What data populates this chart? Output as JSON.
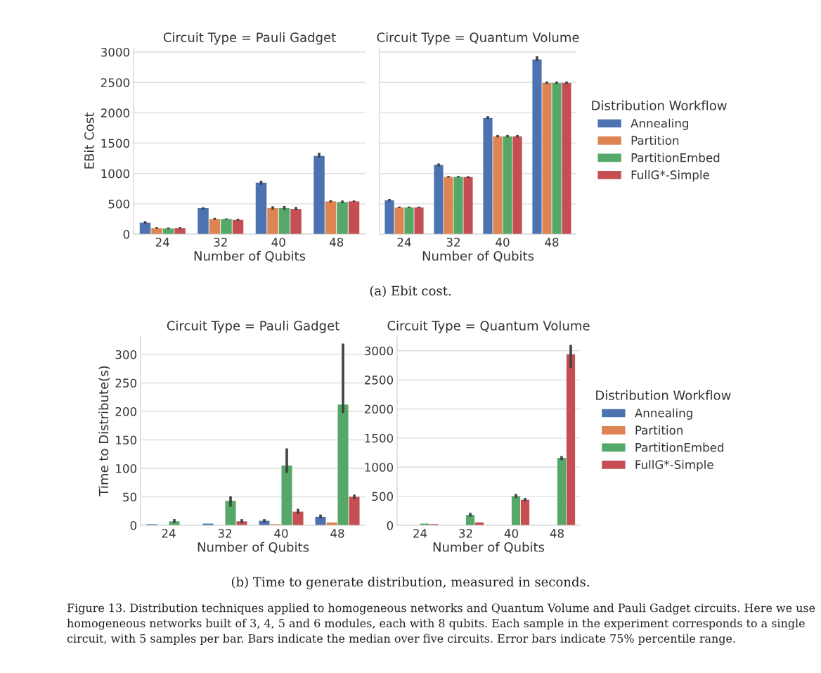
{
  "chart_data": [
    {
      "type": "bar",
      "title": "Circuit Type = Pauli Gadget",
      "xlabel": "Number of Qubits",
      "ylabel": "EBit Cost",
      "categories": [
        "24",
        "32",
        "40",
        "48"
      ],
      "ylim": [
        0,
        3070
      ],
      "yticks": [
        0,
        500,
        1000,
        1500,
        2000,
        2500,
        3000
      ],
      "grid": "y",
      "series": [
        {
          "color": "#4c72b0",
          "values": [
            190,
            430,
            850,
            1290
          ],
          "errors": [
            [
              165,
              215
            ],
            [
              410,
              445
            ],
            [
              815,
              880
            ],
            [
              1260,
              1340
            ]
          ]
        },
        {
          "color": "#dd8452",
          "values": [
            100,
            250,
            430,
            540
          ],
          "errors": [
            [
              90,
              115
            ],
            [
              235,
              270
            ],
            [
              405,
              460
            ],
            [
              525,
              560
            ]
          ]
        },
        {
          "color": "#55a868",
          "values": [
            95,
            250,
            430,
            530
          ],
          "errors": [
            [
              80,
              110
            ],
            [
              240,
              260
            ],
            [
              400,
              465
            ],
            [
              510,
              555
            ]
          ]
        },
        {
          "color": "#c44e52",
          "values": [
            100,
            235,
            415,
            540
          ],
          "errors": [
            [
              90,
              115
            ],
            [
              220,
              255
            ],
            [
              395,
              450
            ],
            [
              530,
              555
            ]
          ]
        }
      ]
    },
    {
      "type": "bar",
      "title": "Circuit Type = Quantum Volume",
      "xlabel": "Number of Qubits",
      "categories": [
        "24",
        "32",
        "40",
        "48"
      ],
      "ylim": [
        0,
        3070
      ],
      "yticks": [
        0,
        500,
        1000,
        1500,
        2000,
        2500,
        3000
      ],
      "tick_labels": "x",
      "grid": "y",
      "legend": "right",
      "legend_title": "Distribution Workflow",
      "annotations": [
        "(a) Ebit cost."
      ],
      "series": [
        {
          "name": "Annealing",
          "color": "#4c72b0",
          "values": [
            560,
            1140,
            1915,
            2880
          ],
          "errors": [
            [
              540,
              580
            ],
            [
              1120,
              1165
            ],
            [
              1895,
              1945
            ],
            [
              2850,
              2930
            ]
          ]
        },
        {
          "name": "Partition",
          "color": "#dd8452",
          "values": [
            440,
            945,
            1610,
            2490
          ],
          "errors": [
            [
              430,
              455
            ],
            [
              935,
              960
            ],
            [
              1595,
              1635
            ],
            [
              2475,
              2515
            ]
          ]
        },
        {
          "name": "PartitionEmbed",
          "color": "#55a868",
          "values": [
            440,
            945,
            1610,
            2490
          ],
          "errors": [
            [
              430,
              455
            ],
            [
              935,
              960
            ],
            [
              1595,
              1635
            ],
            [
              2475,
              2515
            ]
          ]
        },
        {
          "name": "FullG*-Simple",
          "color": "#c44e52",
          "values": [
            440,
            940,
            1610,
            2490
          ],
          "errors": [
            [
              430,
              455
            ],
            [
              925,
              955
            ],
            [
              1595,
              1635
            ],
            [
              2475,
              2515
            ]
          ]
        }
      ]
    },
    {
      "type": "bar",
      "title": "Circuit Type = Pauli Gadget",
      "xlabel": "Number of Qubits",
      "ylabel": "Time to Distribute(s)",
      "categories": [
        "24",
        "32",
        "40",
        "48"
      ],
      "ylim": [
        0,
        332
      ],
      "yticks": [
        0,
        50,
        100,
        150,
        200,
        250,
        300
      ],
      "grid": "y",
      "legend": "right",
      "legend_title": "Distribution Workflow",
      "series": [
        {
          "name": "Annealing",
          "color": "#4c72b0",
          "values": [
            2,
            3,
            8,
            15
          ],
          "errors": [
            null,
            null,
            [
              5,
              11
            ],
            [
              12,
              19
            ]
          ]
        },
        {
          "name": "Partition",
          "color": "#dd8452",
          "values": [
            null,
            null,
            2,
            5
          ],
          "errors": [
            null,
            null,
            null,
            null
          ]
        },
        {
          "name": "PartitionEmbed",
          "color": "#55a868",
          "values": [
            7,
            43,
            105,
            212
          ],
          "errors": [
            [
              4,
              11
            ],
            [
              33,
              51
            ],
            [
              92,
              135
            ],
            [
              197,
              319
            ]
          ]
        },
        {
          "name": "FullG*-Simple",
          "color": "#c44e52",
          "values": [
            null,
            7,
            24,
            50
          ],
          "errors": [
            null,
            [
              4,
              11
            ],
            [
              20,
              29
            ],
            [
              46,
              54
            ]
          ]
        }
      ]
    },
    {
      "type": "bar",
      "title": "Circuit Type = Quantum Volume",
      "xlabel": "Number of Qubits",
      "categories": [
        "24",
        "32",
        "40",
        "48"
      ],
      "ylim": [
        0,
        3250
      ],
      "yticks": [
        0,
        500,
        1000,
        1500,
        2000,
        2500,
        3000
      ],
      "grid": "y",
      "annotations": [
        "(b) Time to generate distribution, measured in seconds.",
        "Figure 13. Distribution techniques applied to homogeneous networks and Quantum Volume and Pauli Gadget circuits. Here we use homogeneous networks built of 3, 4, 5 and 6 modules, each with 8 qubits. Each sample in the experiment corresponds to a single circuit, with 5 samples per bar. Bars indicate the median over five circuits. Error bars indicate 75% percentile range."
      ],
      "series": [
        {
          "color": "#55a868",
          "values": [
            30,
            180,
            500,
            1160
          ],
          "errors": [
            null,
            [
              150,
              215
            ],
            [
              470,
              540
            ],
            [
              1120,
              1190
            ]
          ]
        },
        {
          "color": "#c44e52",
          "values": [
            20,
            50,
            440,
            2940
          ],
          "errors": [
            null,
            null,
            [
              410,
              470
            ],
            [
              2700,
              3100
            ]
          ]
        }
      ]
    }
  ]
}
